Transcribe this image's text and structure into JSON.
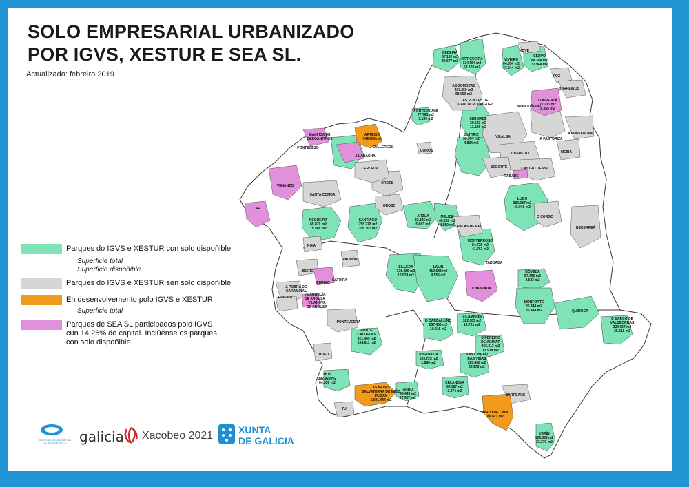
{
  "title_line1": "SOLO EMPRESARIAL URBANIZADO",
  "title_line2": "POR IGVS, XESTUR E SEA SL.",
  "updated": "Actualizado: febreiro 2019",
  "colors": {
    "frame": "#1f96d3",
    "available": "#7ee3b6",
    "no_available": "#d6d6d6",
    "in_development": "#f19a1c",
    "sea_sl": "#e290dc",
    "border": "#333333"
  },
  "legend": {
    "available": {
      "label": "Parques do IGVS e XESTUR con solo dispoñible",
      "sub1": "Superficie total",
      "sub2": "Superficie dispoñible"
    },
    "no_available": {
      "label": "Parques do IGVS e XESTUR sen solo dispoñible"
    },
    "in_development": {
      "label": "En desenvolvemento polo IGVS e XESTUR",
      "sub1": "Superficie total"
    },
    "sea_sl": {
      "line1": "Parques de SEA SL participados polo IGVS",
      "line2": "cun 14,26% do capital. Inclúense os parques",
      "line3": "con solo dispoñible."
    }
  },
  "map_labels": [
    {
      "l1": "CEDEIRA",
      "l2": "57.192 m2",
      "l3": "36.677 m2"
    },
    {
      "l1": "ORTIGUEIRA",
      "l2": "134.154 m2",
      "l3": "52.126 m2"
    },
    {
      "l1": "VIVEIRO",
      "l2": "84.394 m2",
      "l3": "37.944 m2"
    },
    {
      "l1": "XOVE"
    },
    {
      "l1": "CERVO",
      "l2": "84.394 m2",
      "l3": "37.944 m2"
    },
    {
      "l1": "FOZ"
    },
    {
      "l1": "BARREIROS"
    },
    {
      "l1": "AS SOMOZAS",
      "l2": "423.250 m2",
      "l3": "68.000 m2"
    },
    {
      "l1": "AS PONTES DE",
      "l2": "GARCÍA RODRÍGUEZ"
    },
    {
      "l1": "LOURENZÁ",
      "l2": "77.771 m2",
      "l3": "8.855 m2"
    },
    {
      "l1": "MONDOÑEDO"
    },
    {
      "l1": "A PONTENOVA"
    },
    {
      "l1": "PONTEDEUME",
      "l2": "77.763 m2",
      "l3": "1.139 m2"
    },
    {
      "l1": "XERMADE",
      "l2": "39.683 m2",
      "l3": "11.126 m2"
    },
    {
      "l1": "VILALBA"
    },
    {
      "l1": "A PASTORIZA"
    },
    {
      "l1": "MEIRA"
    },
    {
      "l1": "ARTEIXO",
      "l2": "949.686 m2"
    },
    {
      "l1": "CULLEREDO"
    },
    {
      "l1": "A LARACHA"
    },
    {
      "l1": "MALPICA DE",
      "l2": "BERGANTIÑOS"
    },
    {
      "l1": "PONTECESO"
    },
    {
      "l1": "CORÓS"
    },
    {
      "l1": "GUITIRIZ",
      "l2": "50.994 m2",
      "l3": "4.834 m2"
    },
    {
      "l1": "COSPEITO"
    },
    {
      "l1": "BEGONTE"
    },
    {
      "l1": "CASTRO DE REI"
    },
    {
      "l1": "RÁBADE"
    },
    {
      "l1": "CERCEDA"
    },
    {
      "l1": "ORDES"
    },
    {
      "l1": "VIMIANZO"
    },
    {
      "l1": "SANTA COMBA"
    },
    {
      "l1": "OROSO"
    },
    {
      "l1": "LUGO",
      "l2": "382.087 m2",
      "l3": "46.945 m2"
    },
    {
      "l1": "CEE"
    },
    {
      "l1": "NEGREIRA",
      "l2": "69.879 m2",
      "l3": "19.588 m2"
    },
    {
      "l1": "SANTIAGO",
      "l2": "758.278 m2",
      "l3": "356.363 m2"
    },
    {
      "l1": "ARZÚA",
      "l2": "32.825 m2",
      "l3": "5.083 m2"
    },
    {
      "l1": "MELIDE",
      "l2": "46.208 m2",
      "l3": "4.880 m2"
    },
    {
      "l1": "O CORGO"
    },
    {
      "l1": "PALAS DE REI"
    },
    {
      "l1": "BECERREÁ"
    },
    {
      "l1": "NOIA"
    },
    {
      "l1": "PADRÓN"
    },
    {
      "l1": "MONTERROSO",
      "l2": "84.725 m2",
      "l3": "41.763 m2"
    },
    {
      "l1": "TABOADA"
    },
    {
      "l1": "BOIRO"
    },
    {
      "l1": "SILLEDA",
      "l2": "176.485 m2",
      "l3": "12.974 m2"
    },
    {
      "l1": "LALÍN",
      "l2": "419.683 m2",
      "l3": "9.555 m2"
    },
    {
      "l1": "RIANXO"
    },
    {
      "l1": "CATOIRA"
    },
    {
      "l1": "A POBRA DO",
      "l2": "CARAMIÑAL"
    },
    {
      "l1": "RIBEIRA"
    },
    {
      "l1": "VILAGARCÍA",
      "l2": "DE AROUSA"
    },
    {
      "l1": "VILANOVA",
      "l2": "DE AROUSA"
    },
    {
      "l1": "CHANTADA"
    },
    {
      "l1": "BÓVEDA",
      "l2": "57.796 m2",
      "l3": "4.643 m2"
    },
    {
      "l1": "MONFORTE",
      "l2": "35.444 m2",
      "l3": "35.444 m2"
    },
    {
      "l1": "QUIROGA"
    },
    {
      "l1": "PONTEVEDRA"
    },
    {
      "l1": "O CARBALLIÑO",
      "l2": "237.460 m2",
      "l3": "10.916 m2"
    },
    {
      "l1": "VILAMARÍN",
      "l2": "182.083 m2",
      "l3": "19.721 m2"
    },
    {
      "l1": "O BARCO DE",
      "l2": "VALDEORRAS",
      "l3": "220.057 m2",
      "l4": "35.611 m2"
    },
    {
      "l1": "PONTE",
      "l2": "CALDELAS",
      "l3": "321.469 m2",
      "l4": "164.811 m2"
    },
    {
      "l1": "O PEREIRO",
      "l2": "DE AGUIAR",
      "l3": "365.313 m2",
      "l4": "12.978 m2"
    },
    {
      "l1": "BUEU"
    },
    {
      "l1": "RIBADAVIA",
      "l2": "103.725 m2",
      "l3": "1.880 m2"
    },
    {
      "l1": "SAN CIBRAO",
      "l2": "DAS VIÑAS",
      "l3": "125.448 m2",
      "l4": "29.178 m2"
    },
    {
      "l1": "MOS",
      "l2": "392.929 m2",
      "l3": "64.359 m2"
    },
    {
      "l1": "AS NEVES",
      "l2": "SALVATERRA DE MIÑO",
      "l3": "PLISAN",
      "l4": "1.691.444 m2"
    },
    {
      "l1": "ARBO",
      "l2": "46.443 m2",
      "l3": "27.607 m2"
    },
    {
      "l1": "CELANOVA",
      "l2": "63.387 m2",
      "l3": "3.274 m2"
    },
    {
      "l1": "SARREAUS"
    },
    {
      "l1": "TUI"
    },
    {
      "l1": "XINZO DE LIMIA",
      "l2": "86.821 m2"
    },
    {
      "l1": "VERÍN",
      "l2": "129.362 m2",
      "l3": "33.379 m2"
    }
  ],
  "logos": {
    "igvs": "INSTITUTO GALEGO DA VIVENDA E SOLO",
    "galicia": "galicia",
    "xacobeo": "Xacobeo 2021",
    "xunta1": "XUNTA",
    "xunta2": "DE GALICIA"
  }
}
